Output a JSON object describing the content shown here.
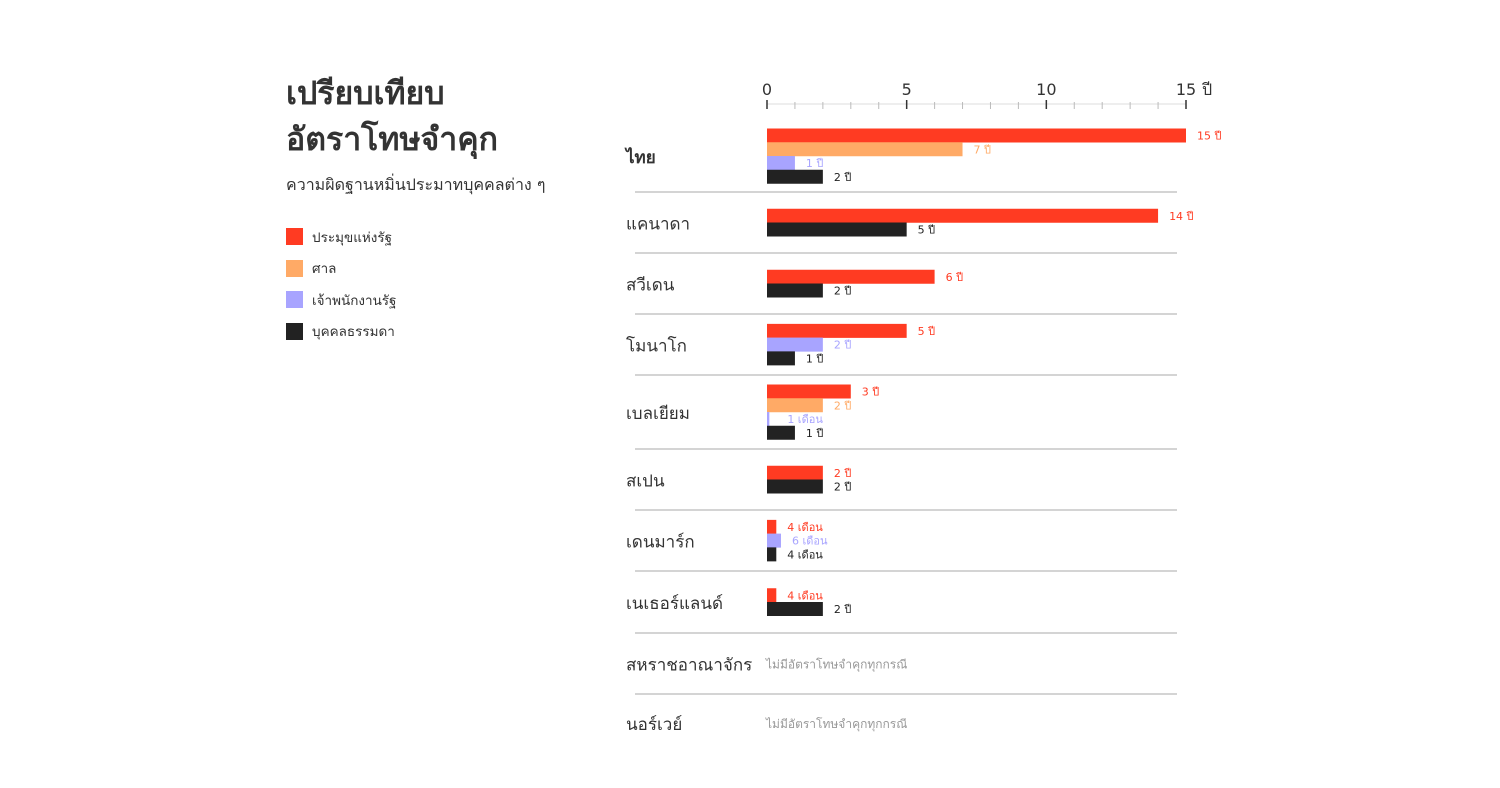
{
  "title_lines": [
    "เปรียบเทียบ",
    "อัตราโทษจำคุก"
  ],
  "subtitle": "ความผิดฐานหมิ่นประมาทบุคคลต่าง ๆ",
  "legend": [
    {
      "label": "ประมุขแห่งรัฐ",
      "color": "#ff3b22"
    },
    {
      "label": "ศาล",
      "color": "#ffaa66"
    },
    {
      "label": "เจ้าพนักงานรัฐ",
      "color": "#a8a4ff"
    },
    {
      "label": "บุคคลธรรมดา",
      "color": "#222222"
    }
  ],
  "chart_data": {
    "type": "bar",
    "orientation": "horizontal",
    "x_unit": "ปี",
    "xlim": [
      0,
      15
    ],
    "x_ticks": [
      "0",
      "5",
      "10",
      "15"
    ],
    "x_minor_tick_step": 1,
    "series_names": [
      "ประมุขแห่งรัฐ",
      "ศาล",
      "เจ้าพนักงานรัฐ",
      "บุคคลธรรมดา"
    ],
    "series_colors": [
      "#ff3b22",
      "#ffaa66",
      "#a8a4ff",
      "#222222"
    ],
    "countries": [
      {
        "name": "ไทย",
        "bold": true,
        "bars": [
          {
            "series": 0,
            "value": 15,
            "label": "15 ปี"
          },
          {
            "series": 1,
            "value": 7,
            "label": "7 ปี"
          },
          {
            "series": 2,
            "value": 1,
            "label": "1 ปี"
          },
          {
            "series": 3,
            "value": 2,
            "label": "2 ปี"
          }
        ]
      },
      {
        "name": "แคนาดา",
        "bars": [
          {
            "series": 0,
            "value": 14,
            "label": "14 ปี"
          },
          {
            "series": 3,
            "value": 5,
            "label": "5 ปี"
          }
        ]
      },
      {
        "name": "สวีเดน",
        "bars": [
          {
            "series": 0,
            "value": 6,
            "label": "6 ปี"
          },
          {
            "series": 3,
            "value": 2,
            "label": "2 ปี"
          }
        ]
      },
      {
        "name": "โมนาโก",
        "bars": [
          {
            "series": 0,
            "value": 5,
            "label": "5 ปี"
          },
          {
            "series": 2,
            "value": 2,
            "label": "2 ปี"
          },
          {
            "series": 3,
            "value": 1,
            "label": "1 ปี"
          }
        ]
      },
      {
        "name": "เบลเยียม",
        "bars": [
          {
            "series": 0,
            "value": 3,
            "label": "3 ปี"
          },
          {
            "series": 1,
            "value": 2,
            "label": "2 ปี"
          },
          {
            "series": 2,
            "value": 0.0833,
            "label": "1 เดือน"
          },
          {
            "series": 3,
            "value": 1,
            "label": "1 ปี"
          }
        ]
      },
      {
        "name": "สเปน",
        "bars": [
          {
            "series": 0,
            "value": 2,
            "label": "2 ปี"
          },
          {
            "series": 3,
            "value": 2,
            "label": "2 ปี"
          }
        ]
      },
      {
        "name": "เดนมาร์ก",
        "bars": [
          {
            "series": 0,
            "value": 0.333,
            "label": "4 เดือน"
          },
          {
            "series": 2,
            "value": 0.5,
            "label": "6 เดือน"
          },
          {
            "series": 3,
            "value": 0.333,
            "label": "4 เดือน"
          }
        ]
      },
      {
        "name": "เนเธอร์แลนด์",
        "bars": [
          {
            "series": 0,
            "value": 0.333,
            "label": "4 เดือน"
          },
          {
            "series": 3,
            "value": 2,
            "label": "2 ปี"
          }
        ]
      },
      {
        "name": "สหราชอาณาจักร",
        "bars": [],
        "note": "ไม่มีอัตราโทษจำคุกทุกกรณี"
      },
      {
        "name": "นอร์เวย์",
        "bars": [],
        "note": "ไม่มีอัตราโทษจำคุกทุกกรณี"
      }
    ]
  }
}
